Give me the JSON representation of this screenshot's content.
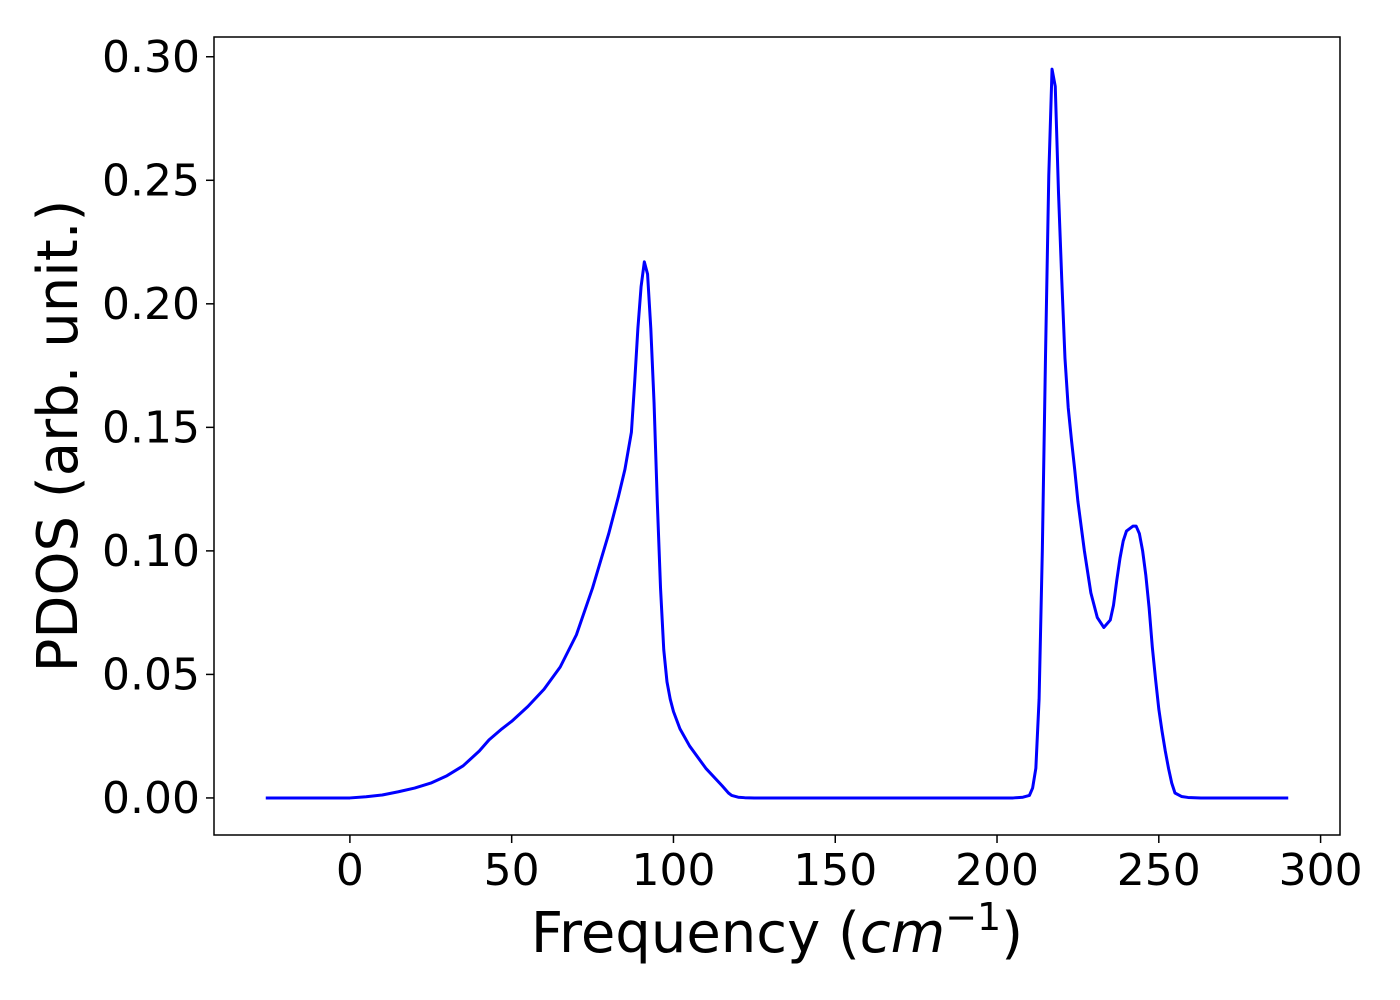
{
  "chart_data": {
    "type": "line",
    "xlabel": "Frequency (",
    "xlabel_math_base": "cm",
    "xlabel_math_sup": "−1",
    "xlabel_close": ")",
    "ylabel": "PDOS (arb. unit.)",
    "xlim": [
      -42,
      306
    ],
    "ylim": [
      -0.015,
      0.308
    ],
    "xticks": [
      0,
      50,
      100,
      150,
      200,
      250,
      300
    ],
    "xtick_labels": [
      "0",
      "50",
      "100",
      "150",
      "200",
      "250",
      "300"
    ],
    "yticks": [
      0.0,
      0.05,
      0.1,
      0.15,
      0.2,
      0.25,
      0.3
    ],
    "ytick_labels": [
      "0.00",
      "0.05",
      "0.10",
      "0.15",
      "0.20",
      "0.25",
      "0.30"
    ],
    "grid": false,
    "series": [
      {
        "color": "#0000ff",
        "x": [
          -26,
          0,
          5,
          10,
          15,
          20,
          25,
          30,
          35,
          40,
          43,
          47,
          50,
          55,
          60,
          65,
          70,
          75,
          80,
          83,
          85,
          87,
          88,
          89,
          90,
          91,
          92,
          93,
          94,
          95,
          96,
          97,
          98,
          99,
          100,
          102,
          105,
          110,
          115,
          117,
          118,
          120,
          122,
          125,
          150,
          200,
          205,
          208,
          210,
          211,
          212,
          213,
          214,
          215,
          216,
          217,
          218,
          219,
          220,
          221,
          222,
          223,
          224,
          225,
          227,
          229,
          231,
          233,
          235,
          236,
          237,
          238,
          239,
          240,
          242,
          243,
          244,
          245,
          246,
          247,
          248,
          249,
          250,
          251,
          252,
          253,
          254,
          255,
          257,
          259,
          261,
          263,
          265,
          267,
          269,
          270,
          272,
          275,
          290
        ],
        "y": [
          0.0,
          0.0,
          0.0005,
          0.0012,
          0.0025,
          0.004,
          0.006,
          0.009,
          0.013,
          0.019,
          0.0235,
          0.028,
          0.031,
          0.037,
          0.044,
          0.053,
          0.066,
          0.085,
          0.107,
          0.122,
          0.133,
          0.148,
          0.168,
          0.19,
          0.207,
          0.217,
          0.212,
          0.19,
          0.16,
          0.12,
          0.085,
          0.06,
          0.047,
          0.04,
          0.035,
          0.028,
          0.021,
          0.012,
          0.005,
          0.002,
          0.001,
          0.0003,
          0.0001,
          0.0,
          0.0,
          0.0,
          0.0,
          0.0003,
          0.001,
          0.004,
          0.012,
          0.04,
          0.1,
          0.18,
          0.252,
          0.295,
          0.288,
          0.245,
          0.21,
          0.178,
          0.158,
          0.145,
          0.133,
          0.12,
          0.1,
          0.083,
          0.073,
          0.069,
          0.072,
          0.078,
          0.088,
          0.097,
          0.104,
          0.108,
          0.11,
          0.11,
          0.107,
          0.1,
          0.09,
          0.077,
          0.061,
          0.048,
          0.036,
          0.027,
          0.019,
          0.012,
          0.006,
          0.002,
          0.0006,
          0.0002,
          0.0001,
          0.0,
          0.0,
          0.0,
          0.0,
          0.0,
          0.0,
          0.0,
          0.0
        ]
      }
    ]
  }
}
